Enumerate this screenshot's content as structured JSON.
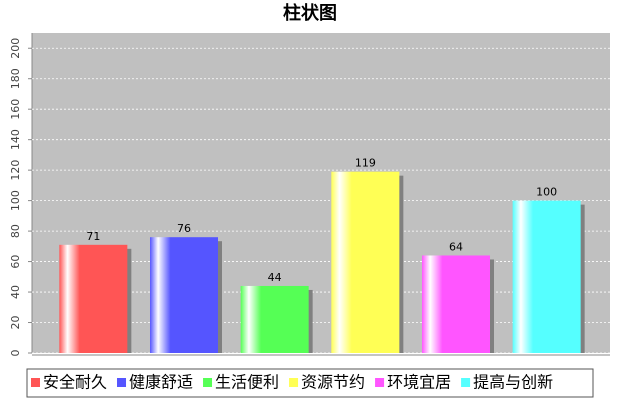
{
  "chart_data": {
    "type": "bar",
    "title": "柱状图",
    "categories": [
      "安全耐久",
      "健康舒适",
      "生活便利",
      "资源节约",
      "环境宜居",
      "提高与创新"
    ],
    "values": [
      71,
      76,
      44,
      119,
      64,
      100
    ],
    "colors": [
      "#ff5555",
      "#5555ff",
      "#55ff55",
      "#ffff55",
      "#ff55ff",
      "#55ffff"
    ],
    "ylim": [
      0,
      210
    ],
    "yticks": [
      0,
      20,
      40,
      60,
      80,
      100,
      120,
      140,
      160,
      180,
      200
    ],
    "grid": true,
    "legend": "bottom"
  }
}
